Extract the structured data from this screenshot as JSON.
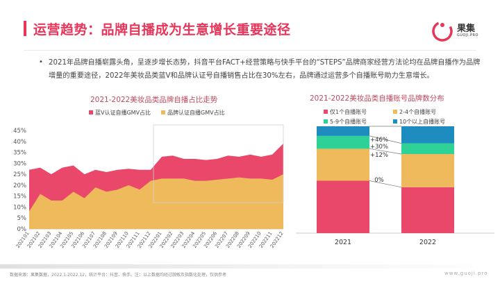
{
  "header": {
    "title": "运营趋势：品牌自播成为生意增长重要途径",
    "logo_text": "果集",
    "logo_sub": "GUOJI.PRO"
  },
  "summary": {
    "bullet": "•",
    "text": "2021年品牌自播崭露头角，呈逐步增长态势，抖音平台FACT+经营策略与快手平台的“STEPS”品牌商家经营方法论均在品牌自播作为品牌增量的重要途径，2022年美妆品类蓝V和品牌认证号自播销售占比在30%左右，品牌通过运营多个自播账号助力生意增长。"
  },
  "colors": {
    "accent": "#e8355a",
    "blue_v": "#e9486b",
    "brand_cert": "#efba5c",
    "only1": "#e9486b",
    "n2_4": "#efba5c",
    "n5_9": "#2ed196",
    "n10plus": "#1f8cc0"
  },
  "chart_data": [
    {
      "type": "area",
      "title": "2021-2022美妆品类品牌自播占比走势",
      "legend_position": "top",
      "series": [
        {
          "name": "蓝V认证自播GMV占比",
          "values": [
            27,
            28,
            25,
            28,
            29,
            25,
            27,
            26,
            27,
            27.5,
            27,
            27,
            33,
            33.5,
            32,
            32,
            31.5,
            32,
            33.5,
            33,
            34,
            33,
            34,
            39
          ]
        },
        {
          "name": "品牌认证自播GMV占比",
          "values": [
            8,
            16,
            13,
            13,
            17,
            14,
            19,
            17,
            18,
            20,
            18,
            22,
            23,
            23,
            23,
            22,
            22,
            22.5,
            23,
            23.5,
            23,
            23,
            22.5,
            25
          ]
        }
      ],
      "categories": [
        "202101",
        "202102",
        "202103",
        "202104",
        "202105",
        "202106",
        "202107",
        "202108",
        "202109",
        "202110",
        "202111",
        "202112",
        "202201",
        "202202",
        "202203",
        "202204",
        "202205",
        "202206",
        "202207",
        "202208",
        "202209",
        "202210",
        "202211",
        "202212"
      ],
      "yticks": [
        "0%",
        "5%",
        "10%",
        "15%",
        "20%",
        "25%",
        "30%",
        "35%",
        "40%",
        "45%"
      ],
      "ylim": [
        0,
        45
      ]
    },
    {
      "type": "bar",
      "stacked": true,
      "title": "2021-2022美妆品类自播账号品牌数分布",
      "legend_position": "top",
      "categories": [
        "2021",
        "2022"
      ],
      "series": [
        {
          "name": "仅1个自播账号",
          "values": [
            49,
            43
          ]
        },
        {
          "name": "2-4个自播账号",
          "values": [
            30,
            31
          ]
        },
        {
          "name": "5-9个自播账号",
          "values": [
            12,
            10
          ]
        },
        {
          "name": "10个以上自播账号",
          "values": [
            9,
            16
          ]
        }
      ],
      "ylim": [
        0,
        100
      ],
      "annotations": [
        "+46%",
        "+30%",
        "+12%",
        "0%"
      ]
    }
  ],
  "footer": {
    "source": "数据来源：果集数据，2022.1-2022.12，统计平台：抖音、快手。注：以上数据均经过脱敏及指数化处理，仅供参考",
    "url": "www.guoji.pro"
  }
}
